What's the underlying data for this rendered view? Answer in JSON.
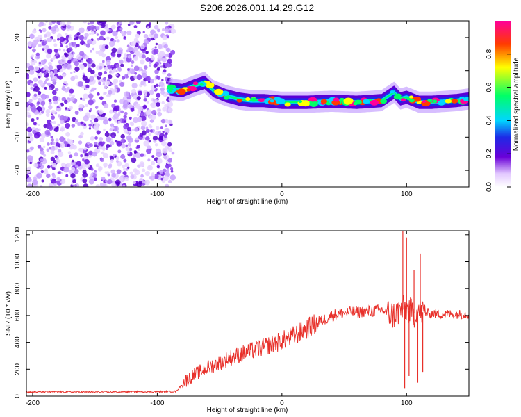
{
  "title": "S206.2026.001.14.29.G12",
  "chart_data": [
    {
      "type": "heatmap",
      "name": "spectrogram",
      "xlabel": "Height of straight line (km)",
      "ylabel": "Frequency (Hz)",
      "xlim": [
        -205,
        150
      ],
      "ylim": [
        -25,
        25
      ],
      "xticks": [
        -200,
        -100,
        0,
        100
      ],
      "yticks": [
        -20,
        -10,
        0,
        10,
        20
      ],
      "noise_region_x": [
        -205,
        -87
      ],
      "signal_ridge": {
        "x": [
          -90,
          -80,
          -70,
          -62,
          -55,
          -45,
          -35,
          -25,
          -15,
          0,
          20,
          40,
          60,
          80,
          90,
          95,
          100,
          110,
          120,
          140,
          150
        ],
        "frequency": [
          4.5,
          4.0,
          5.5,
          6.5,
          4.0,
          2.5,
          1.5,
          1.0,
          1.0,
          0.5,
          0.5,
          0.8,
          0.5,
          1.0,
          3.5,
          1.5,
          2.0,
          0.5,
          0.5,
          1.0,
          1.5
        ]
      },
      "colorbar": {
        "label": "Normalized spectral amplitude",
        "range": [
          0.0,
          1.0
        ],
        "ticks": [
          "0.0",
          "0.2",
          "0.4",
          "0.6",
          "0.8"
        ],
        "colors": [
          "#ffffff",
          "#6a00d8",
          "#1d2ae6",
          "#00d6ff",
          "#00ff66",
          "#ffff00",
          "#ff3b00",
          "#ff0099"
        ]
      }
    },
    {
      "type": "line",
      "name": "snr",
      "xlabel": "Height of straight line (km)",
      "ylabel": "SNR (10 * v/v)",
      "xlim": [
        -205,
        150
      ],
      "ylim": [
        0,
        1230
      ],
      "xticks": [
        -200,
        -100,
        0,
        100
      ],
      "yticks": [
        0,
        200,
        400,
        600,
        800,
        1000,
        1200
      ],
      "color": "#e8302a",
      "x": [
        -205,
        -180,
        -150,
        -120,
        -100,
        -85,
        -78,
        -70,
        -60,
        -50,
        -40,
        -30,
        -20,
        -10,
        0,
        10,
        20,
        30,
        40,
        50,
        60,
        70,
        80,
        85,
        90,
        95,
        100,
        105,
        110,
        115,
        120,
        130,
        140,
        150
      ],
      "y": [
        30,
        32,
        30,
        32,
        33,
        35,
        110,
        160,
        210,
        250,
        290,
        320,
        350,
        380,
        410,
        450,
        500,
        550,
        600,
        620,
        625,
        630,
        640,
        620,
        600,
        640,
        650,
        610,
        630,
        620,
        615,
        610,
        610,
        610
      ],
      "spikes": [
        {
          "x": 97,
          "y": 1230
        },
        {
          "x": 98.5,
          "y": 60
        },
        {
          "x": 100,
          "y": 1180
        },
        {
          "x": 102,
          "y": 150
        },
        {
          "x": 106,
          "y": 940
        },
        {
          "x": 109,
          "y": 100
        },
        {
          "x": 111,
          "y": 1060
        },
        {
          "x": 113,
          "y": 180
        }
      ]
    }
  ]
}
